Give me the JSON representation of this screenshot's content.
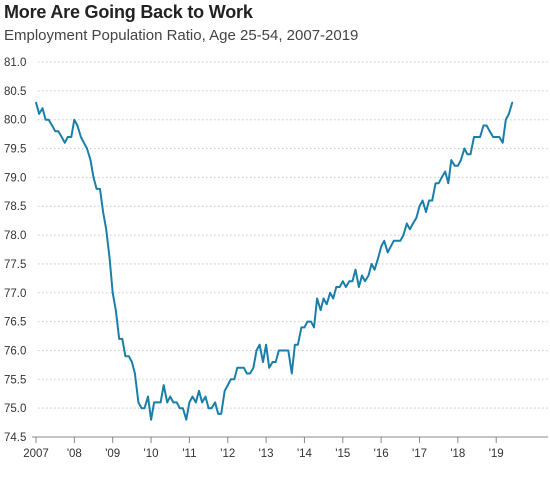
{
  "chart_data": {
    "type": "line",
    "title": "More Are Going Back to Work",
    "subtitle": "Employment Population Ratio, Age 25-54, 2007-2019",
    "xlabel": "",
    "ylabel": "",
    "ylim": [
      74.5,
      81.0
    ],
    "xlim": [
      2007.0,
      2019.83
    ],
    "yticks": [
      74.5,
      75.0,
      75.5,
      76.0,
      76.5,
      77.0,
      77.5,
      78.0,
      78.5,
      79.0,
      79.5,
      80.0,
      80.5,
      81.0
    ],
    "ytick_labels": [
      "74.5",
      "75.0",
      "75.5",
      "76.0",
      "76.5",
      "77.0",
      "77.5",
      "78.0",
      "78.5",
      "79.0",
      "79.5",
      "80.0",
      "80.5",
      "81.0"
    ],
    "xticks": [
      2007,
      2008,
      2009,
      2010,
      2011,
      2012,
      2013,
      2014,
      2015,
      2016,
      2017,
      2018,
      2019
    ],
    "xtick_labels": [
      "2007",
      "'08",
      "'09",
      "'10",
      "'11",
      "'12",
      "'13",
      "'14",
      "'15",
      "'16",
      "'17",
      "'18",
      "'19"
    ],
    "grid": true,
    "color": "#1a7fa8",
    "series": [
      {
        "points": [
          [
            2007.0,
            80.3
          ],
          [
            2007.08,
            80.1
          ],
          [
            2007.17,
            80.2
          ],
          [
            2007.25,
            80.0
          ],
          [
            2007.33,
            80.0
          ],
          [
            2007.42,
            79.9
          ],
          [
            2007.5,
            79.8
          ],
          [
            2007.58,
            79.8
          ],
          [
            2007.67,
            79.7
          ],
          [
            2007.75,
            79.6
          ],
          [
            2007.83,
            79.7
          ],
          [
            2007.92,
            79.7
          ],
          [
            2008.0,
            80.0
          ],
          [
            2008.08,
            79.9
          ],
          [
            2008.17,
            79.7
          ],
          [
            2008.25,
            79.6
          ],
          [
            2008.33,
            79.5
          ],
          [
            2008.42,
            79.3
          ],
          [
            2008.5,
            79.0
          ],
          [
            2008.58,
            78.8
          ],
          [
            2008.67,
            78.8
          ],
          [
            2008.75,
            78.4
          ],
          [
            2008.83,
            78.1
          ],
          [
            2008.92,
            77.6
          ],
          [
            2009.0,
            77.0
          ],
          [
            2009.08,
            76.7
          ],
          [
            2009.17,
            76.2
          ],
          [
            2009.25,
            76.2
          ],
          [
            2009.33,
            75.9
          ],
          [
            2009.42,
            75.9
          ],
          [
            2009.5,
            75.8
          ],
          [
            2009.58,
            75.6
          ],
          [
            2009.67,
            75.1
          ],
          [
            2009.75,
            75.0
          ],
          [
            2009.83,
            75.0
          ],
          [
            2009.92,
            75.2
          ],
          [
            2010.0,
            74.8
          ],
          [
            2010.08,
            75.1
          ],
          [
            2010.17,
            75.1
          ],
          [
            2010.25,
            75.1
          ],
          [
            2010.33,
            75.4
          ],
          [
            2010.42,
            75.1
          ],
          [
            2010.5,
            75.2
          ],
          [
            2010.58,
            75.1
          ],
          [
            2010.67,
            75.1
          ],
          [
            2010.75,
            75.0
          ],
          [
            2010.83,
            75.0
          ],
          [
            2010.92,
            74.8
          ],
          [
            2011.0,
            75.1
          ],
          [
            2011.08,
            75.2
          ],
          [
            2011.17,
            75.1
          ],
          [
            2011.25,
            75.3
          ],
          [
            2011.33,
            75.1
          ],
          [
            2011.42,
            75.2
          ],
          [
            2011.5,
            75.0
          ],
          [
            2011.58,
            75.0
          ],
          [
            2011.67,
            75.1
          ],
          [
            2011.75,
            74.9
          ],
          [
            2011.83,
            74.9
          ],
          [
            2011.92,
            75.3
          ],
          [
            2012.0,
            75.4
          ],
          [
            2012.08,
            75.5
          ],
          [
            2012.17,
            75.5
          ],
          [
            2012.25,
            75.7
          ],
          [
            2012.33,
            75.7
          ],
          [
            2012.42,
            75.7
          ],
          [
            2012.5,
            75.6
          ],
          [
            2012.58,
            75.6
          ],
          [
            2012.67,
            75.7
          ],
          [
            2012.75,
            76.0
          ],
          [
            2012.83,
            76.1
          ],
          [
            2012.92,
            75.8
          ],
          [
            2013.0,
            76.1
          ],
          [
            2013.08,
            75.7
          ],
          [
            2013.17,
            75.8
          ],
          [
            2013.25,
            75.8
          ],
          [
            2013.33,
            76.0
          ],
          [
            2013.42,
            76.0
          ],
          [
            2013.5,
            76.0
          ],
          [
            2013.58,
            76.0
          ],
          [
            2013.67,
            75.6
          ],
          [
            2013.75,
            76.1
          ],
          [
            2013.83,
            76.1
          ],
          [
            2013.92,
            76.4
          ],
          [
            2014.0,
            76.4
          ],
          [
            2014.08,
            76.5
          ],
          [
            2014.17,
            76.5
          ],
          [
            2014.25,
            76.4
          ],
          [
            2014.33,
            76.9
          ],
          [
            2014.42,
            76.7
          ],
          [
            2014.5,
            76.9
          ],
          [
            2014.58,
            76.8
          ],
          [
            2014.67,
            77.0
          ],
          [
            2014.75,
            76.9
          ],
          [
            2014.83,
            77.1
          ],
          [
            2014.92,
            77.1
          ],
          [
            2015.0,
            77.2
          ],
          [
            2015.08,
            77.1
          ],
          [
            2015.17,
            77.2
          ],
          [
            2015.25,
            77.2
          ],
          [
            2015.33,
            77.4
          ],
          [
            2015.42,
            77.1
          ],
          [
            2015.5,
            77.3
          ],
          [
            2015.58,
            77.2
          ],
          [
            2015.67,
            77.3
          ],
          [
            2015.75,
            77.5
          ],
          [
            2015.83,
            77.4
          ],
          [
            2015.92,
            77.6
          ],
          [
            2016.0,
            77.8
          ],
          [
            2016.08,
            77.9
          ],
          [
            2016.17,
            77.7
          ],
          [
            2016.25,
            77.8
          ],
          [
            2016.33,
            77.9
          ],
          [
            2016.42,
            77.9
          ],
          [
            2016.5,
            77.9
          ],
          [
            2016.58,
            78.0
          ],
          [
            2016.67,
            78.2
          ],
          [
            2016.75,
            78.1
          ],
          [
            2016.83,
            78.2
          ],
          [
            2016.92,
            78.3
          ],
          [
            2017.0,
            78.5
          ],
          [
            2017.08,
            78.6
          ],
          [
            2017.17,
            78.4
          ],
          [
            2017.25,
            78.6
          ],
          [
            2017.33,
            78.6
          ],
          [
            2017.42,
            78.9
          ],
          [
            2017.5,
            78.9
          ],
          [
            2017.58,
            79.0
          ],
          [
            2017.67,
            79.1
          ],
          [
            2017.75,
            78.9
          ],
          [
            2017.83,
            79.3
          ],
          [
            2017.92,
            79.2
          ],
          [
            2018.0,
            79.2
          ],
          [
            2018.08,
            79.3
          ],
          [
            2018.17,
            79.5
          ],
          [
            2018.25,
            79.4
          ],
          [
            2018.33,
            79.4
          ],
          [
            2018.42,
            79.7
          ],
          [
            2018.5,
            79.7
          ],
          [
            2018.58,
            79.7
          ],
          [
            2018.67,
            79.9
          ],
          [
            2018.75,
            79.9
          ],
          [
            2018.83,
            79.8
          ],
          [
            2018.92,
            79.7
          ],
          [
            2019.0,
            79.7
          ],
          [
            2019.08,
            79.7
          ],
          [
            2019.17,
            79.6
          ],
          [
            2019.25,
            80.0
          ],
          [
            2019.33,
            80.1
          ],
          [
            2019.42,
            80.3
          ]
        ]
      }
    ]
  }
}
